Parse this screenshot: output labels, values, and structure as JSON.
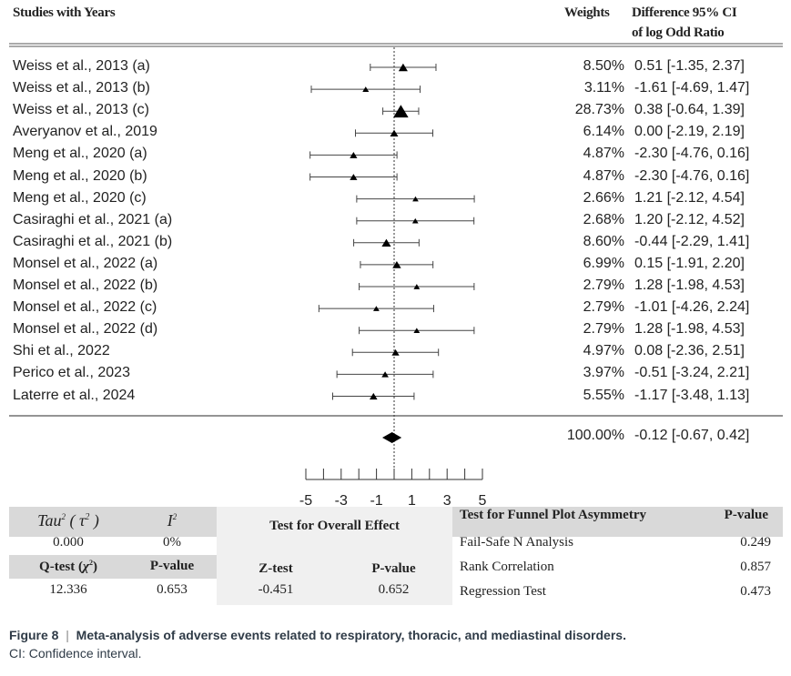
{
  "header": {
    "studies": "Studies with Years",
    "weights": "Weights",
    "ci_line1": "Difference 95% CI",
    "ci_line2": "of log Odd Ratio"
  },
  "chart_data": {
    "type": "forest",
    "xlim": [
      -5,
      5
    ],
    "xticks": [
      "-5",
      "-3",
      "-1",
      "1",
      "3",
      "5"
    ],
    "reference_line": 0,
    "studies": [
      {
        "name": "Weiss et  al., 2013 (a)",
        "weight": "8.50%",
        "est": 0.51,
        "lo": -1.35,
        "hi": 2.37,
        "ci_text": "0.51 [-1.35, 2.37]"
      },
      {
        "name": "Weiss et al., 2013 (b)",
        "weight": "3.11%",
        "est": -1.61,
        "lo": -4.69,
        "hi": 1.47,
        "ci_text": "-1.61 [-4.69, 1.47]"
      },
      {
        "name": "Weiss et al., 2013 (c)",
        "weight": "28.73%",
        "est": 0.38,
        "lo": -0.64,
        "hi": 1.39,
        "ci_text": "0.38 [-0.64, 1.39]"
      },
      {
        "name": "Averyanov et al., 2019",
        "weight": "6.14%",
        "est": 0.0,
        "lo": -2.19,
        "hi": 2.19,
        "ci_text": "0.00 [-2.19, 2.19]"
      },
      {
        "name": "Meng et al., 2020 (a)",
        "weight": "4.87%",
        "est": -2.3,
        "lo": -4.76,
        "hi": 0.16,
        "ci_text": "-2.30 [-4.76, 0.16]"
      },
      {
        "name": "Meng et al., 2020 (b)",
        "weight": "4.87%",
        "est": -2.3,
        "lo": -4.76,
        "hi": 0.16,
        "ci_text": "-2.30 [-4.76, 0.16]"
      },
      {
        "name": "Meng et al., 2020 (c)",
        "weight": "2.66%",
        "est": 1.21,
        "lo": -2.12,
        "hi": 4.54,
        "ci_text": "1.21 [-2.12, 4.54]"
      },
      {
        "name": "Casiraghi  et al., 2021 (a)",
        "weight": "2.68%",
        "est": 1.2,
        "lo": -2.12,
        "hi": 4.52,
        "ci_text": "1.20 [-2.12, 4.52]"
      },
      {
        "name": "Casiraghi  et al., 2021 (b)",
        "weight": "8.60%",
        "est": -0.44,
        "lo": -2.29,
        "hi": 1.41,
        "ci_text": "-0.44 [-2.29, 1.41]"
      },
      {
        "name": "Monsel et al., 2022 (a)",
        "weight": "6.99%",
        "est": 0.15,
        "lo": -1.91,
        "hi": 2.2,
        "ci_text": "0.15 [-1.91, 2.20]"
      },
      {
        "name": "Monsel et al., 2022 (b)",
        "weight": "2.79%",
        "est": 1.28,
        "lo": -1.98,
        "hi": 4.53,
        "ci_text": "1.28 [-1.98, 4.53]"
      },
      {
        "name": "Monsel et al., 2022 (c)",
        "weight": "2.79%",
        "est": -1.01,
        "lo": -4.26,
        "hi": 2.24,
        "ci_text": "-1.01 [-4.26, 2.24]"
      },
      {
        "name": "Monsel et al., 2022 (d)",
        "weight": "2.79%",
        "est": 1.28,
        "lo": -1.98,
        "hi": 4.53,
        "ci_text": "1.28 [-1.98, 4.53]"
      },
      {
        "name": "Shi et al., 2022",
        "weight": "4.97%",
        "est": 0.08,
        "lo": -2.36,
        "hi": 2.51,
        "ci_text": "0.08 [-2.36, 2.51]"
      },
      {
        "name": "Perico et al., 2023",
        "weight": "3.97%",
        "est": -0.51,
        "lo": -3.24,
        "hi": 2.21,
        "ci_text": "-0.51 [-3.24, 2.21]"
      },
      {
        "name": "Laterre et al., 2024",
        "weight": "5.55%",
        "est": -1.17,
        "lo": -3.48,
        "hi": 1.13,
        "ci_text": "-1.17 [-3.48, 1.13]"
      }
    ],
    "summary": {
      "weight": "100.00%",
      "est": -0.12,
      "lo": -0.67,
      "hi": 0.42,
      "ci_text": "-0.12 [-0.67, 0.42]"
    }
  },
  "heterogeneity": {
    "tau_label": "Tau",
    "tau_sym": "τ",
    "i_label": "I",
    "tau_value": "0.000",
    "i_value": "0%",
    "q_label": "Q-test (",
    "q_sym": "χ",
    "p_label": "P-value",
    "q_value": "12.336",
    "p_value": "0.653"
  },
  "overall": {
    "title": "Test for Overall Effect",
    "z_label": "Z-test",
    "p_label": "P-value",
    "z_value": "-0.451",
    "p_value": "0.652"
  },
  "funnel": {
    "title": "Test for Funnel Plot Asymmetry",
    "p_label": "P-value",
    "rows": [
      {
        "name": "Fail-Safe N Analysis",
        "p": "0.249"
      },
      {
        "name": "Rank Correlation",
        "p": "0.857"
      },
      {
        "name": "Regression Test",
        "p": "0.473"
      }
    ]
  },
  "caption": {
    "label": "Figure 8",
    "sep": "|",
    "title": "Meta-analysis of adverse events related to respiratory, thoracic, and mediastinal disorders.",
    "note": "CI: Confidence interval."
  }
}
